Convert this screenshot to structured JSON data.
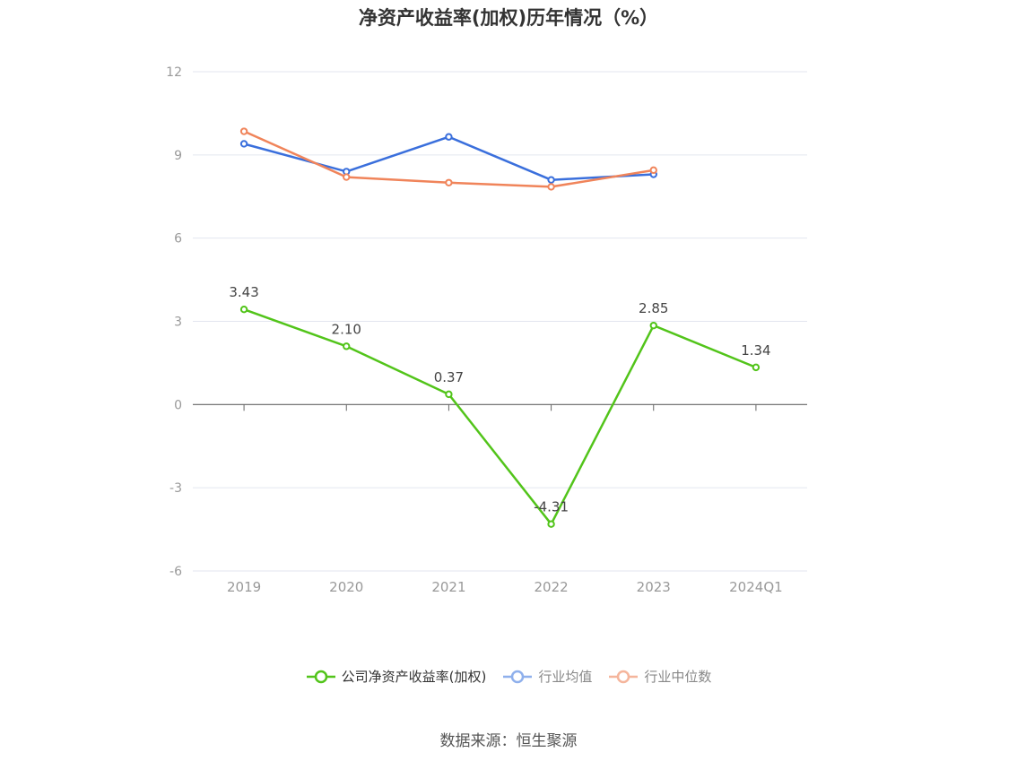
{
  "title": "净资产收益率(加权)历年情况（%）",
  "source": "数据来源：恒生聚源",
  "colors": {
    "company": "#52c41a",
    "avg": "#3a6fdc",
    "median": "#f0845a",
    "avg_legend": "#8fb0ec",
    "median_legend": "#f5b59c",
    "grid": "#e3e6ef",
    "axis": "#666666",
    "tick_text": "#999999",
    "label_text": "#444444"
  },
  "chart_data": {
    "type": "line",
    "categories": [
      "2019",
      "2020",
      "2021",
      "2022",
      "2023",
      "2024Q1"
    ],
    "ylim": [
      -6,
      12
    ],
    "yticks": [
      -6,
      -3,
      0,
      3,
      6,
      9,
      12
    ],
    "grid": true,
    "legend_position": "bottom",
    "series": [
      {
        "name": "公司净资产收益率(加权)",
        "color": "#52c41a",
        "values": [
          3.43,
          2.1,
          0.37,
          -4.31,
          2.85,
          1.34
        ],
        "labels": [
          "3.43",
          "2.10",
          "0.37",
          "-4.31",
          "2.85",
          "1.34"
        ]
      },
      {
        "name": "行业均值",
        "color": "#3a6fdc",
        "values": [
          9.4,
          8.4,
          9.65,
          8.1,
          8.3,
          null
        ]
      },
      {
        "name": "行业中位数",
        "color": "#f0845a",
        "values": [
          9.85,
          8.2,
          8.0,
          7.85,
          8.45,
          null
        ]
      }
    ]
  }
}
